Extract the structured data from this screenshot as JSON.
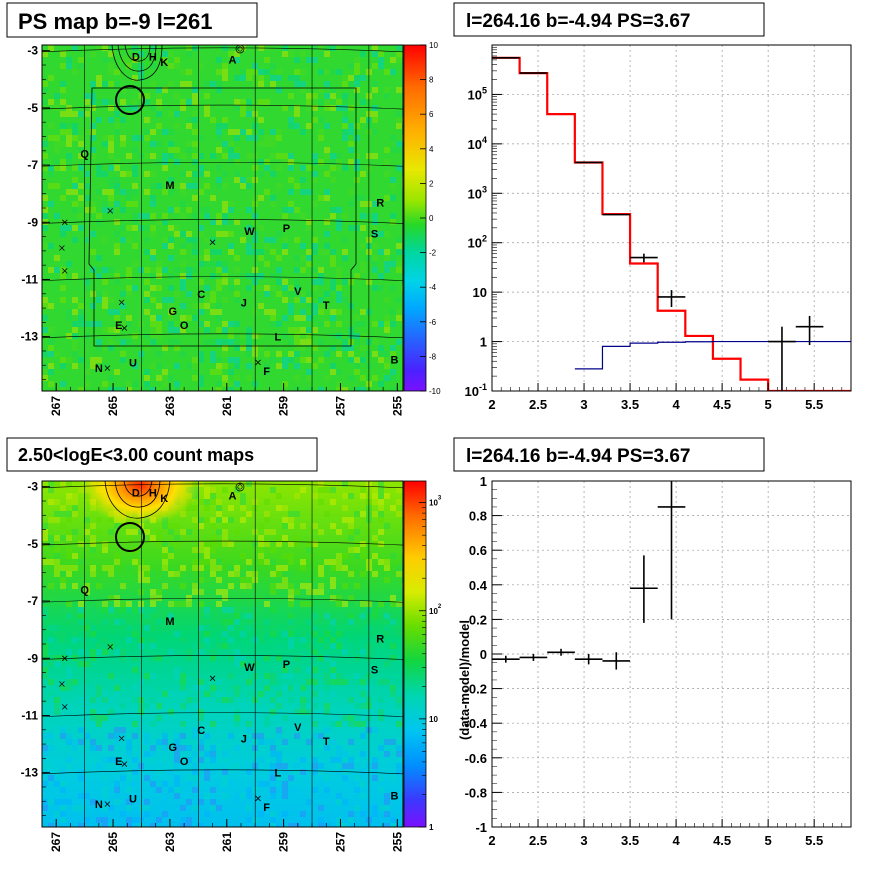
{
  "panels": {
    "tl": {
      "title": "PS map b=-9 l=261"
    },
    "tr": {
      "title": "l=264.16 b=-4.94 PS=3.67"
    },
    "bl": {
      "title": "2.50<logE<3.00 count maps"
    },
    "br": {
      "title": "l=264.16 b=-4.94 PS=3.67"
    }
  },
  "chart_data": [
    {
      "type": "heatmap",
      "title": "PS map b=-9 l=261",
      "x_ticks": [
        "267",
        "265",
        "263",
        "261",
        "259",
        "257",
        "255"
      ],
      "y_ticks": [
        "-3",
        "-5",
        "-7",
        "-9",
        "-11",
        "-13"
      ],
      "colorbar_ticks": [
        "10",
        "8",
        "6",
        "4",
        "2",
        "0",
        "-2",
        "-4",
        "-6",
        "-8",
        "-10"
      ],
      "source_labels": [
        {
          "t": "D",
          "l": 264.2,
          "b": -3.2
        },
        {
          "t": "H",
          "l": 263.6,
          "b": -3.2
        },
        {
          "t": "K",
          "l": 263.2,
          "b": -3.4
        },
        {
          "t": "A",
          "l": 260.8,
          "b": -3.3
        },
        {
          "t": "Q",
          "l": 266.0,
          "b": -6.6
        },
        {
          "t": "M",
          "l": 263.0,
          "b": -7.7
        },
        {
          "t": "R",
          "l": 255.6,
          "b": -8.3
        },
        {
          "t": "W",
          "l": 260.2,
          "b": -9.3
        },
        {
          "t": "P",
          "l": 258.9,
          "b": -9.2
        },
        {
          "t": "S",
          "l": 255.8,
          "b": -9.4
        },
        {
          "t": "C",
          "l": 261.9,
          "b": -11.5
        },
        {
          "t": "J",
          "l": 260.4,
          "b": -11.8
        },
        {
          "t": "V",
          "l": 258.5,
          "b": -11.4
        },
        {
          "t": "T",
          "l": 257.5,
          "b": -11.9
        },
        {
          "t": "G",
          "l": 262.9,
          "b": -12.1
        },
        {
          "t": "O",
          "l": 262.5,
          "b": -12.6
        },
        {
          "t": "E",
          "l": 264.8,
          "b": -12.6
        },
        {
          "t": "L",
          "l": 259.2,
          "b": -13.0
        },
        {
          "t": "U",
          "l": 264.3,
          "b": -13.9
        },
        {
          "t": "N",
          "l": 265.5,
          "b": -14.1
        },
        {
          "t": "F",
          "l": 259.6,
          "b": -14.2
        },
        {
          "t": "B",
          "l": 255.1,
          "b": -13.8
        }
      ]
    },
    {
      "type": "line",
      "title": "l=264.16 b=-4.94 PS=3.67",
      "x_ticks": [
        "2",
        "2.5",
        "3",
        "3.5",
        "4",
        "4.5",
        "5",
        "5.5"
      ],
      "y_ticks": [
        "10^-1",
        "1",
        "10",
        "10^2",
        "10^3",
        "10^4",
        "10^5"
      ],
      "xlim": [
        2,
        5.9
      ],
      "ylim": [
        0.1,
        1000000
      ],
      "yscale": "log",
      "grid": true,
      "series": [
        {
          "color": "#ff0000",
          "edges": [
            2,
            2.3,
            2.6,
            2.9,
            3.2,
            3.5,
            3.8,
            4.1,
            4.4,
            4.7,
            5.0,
            5.3,
            5.6,
            5.9
          ],
          "values": [
            550000,
            270000,
            40000,
            4200,
            380,
            38,
            4.2,
            1.3,
            0.45,
            0.17,
            0.1,
            0.1,
            0.1
          ]
        },
        {
          "color": "#00008b",
          "edges": [
            2.9,
            3.2,
            3.5,
            3.8,
            4.1,
            4.4,
            4.7,
            5.0,
            5.3,
            5.6,
            5.9
          ],
          "values": [
            0.28,
            0.8,
            0.93,
            0.97,
            0.99,
            1.0,
            1.0,
            1.0,
            1.0,
            1.0
          ]
        },
        {
          "color": "#000000",
          "points": [
            {
              "x": 2.15,
              "y": 550000,
              "xlo": 2.0,
              "xhi": 2.3,
              "ylo": 550000,
              "yhi": 550000
            },
            {
              "x": 2.45,
              "y": 270000,
              "xlo": 2.3,
              "xhi": 2.6,
              "ylo": 270000,
              "yhi": 270000
            },
            {
              "x": 3.05,
              "y": 4200,
              "xlo": 2.9,
              "xhi": 3.2,
              "ylo": 4200,
              "yhi": 4200
            },
            {
              "x": 3.35,
              "y": 370,
              "xlo": 3.2,
              "xhi": 3.5,
              "ylo": 370,
              "yhi": 370
            },
            {
              "x": 3.65,
              "y": 50,
              "xlo": 3.5,
              "xhi": 3.8,
              "ylo": 40,
              "yhi": 60
            },
            {
              "x": 3.95,
              "y": 8,
              "xlo": 3.8,
              "xhi": 4.1,
              "ylo": 5,
              "yhi": 11
            },
            {
              "x": 5.15,
              "y": 1,
              "xlo": 5.0,
              "xhi": 5.3,
              "ylo": 0.1,
              "yhi": 2
            },
            {
              "x": 5.45,
              "y": 2,
              "xlo": 5.3,
              "xhi": 5.6,
              "ylo": 0.85,
              "yhi": 3.3
            }
          ]
        }
      ]
    },
    {
      "type": "heatmap",
      "title": "2.50<logE<3.00 count maps",
      "x_ticks": [
        "267",
        "265",
        "263",
        "261",
        "259",
        "257",
        "255"
      ],
      "y_ticks": [
        "-3",
        "-5",
        "-7",
        "-9",
        "-11",
        "-13"
      ],
      "colorbar_ticks": [
        "10^3",
        "10^2",
        "10",
        "1"
      ],
      "colorbar_scale": "log"
    },
    {
      "type": "scatter",
      "title": "l=264.16 b=-4.94 PS=3.67",
      "ylabel": "(data-model)/model",
      "x_ticks": [
        "2",
        "2.5",
        "3",
        "3.5",
        "4",
        "4.5",
        "5",
        "5.5"
      ],
      "y_ticks": [
        "1",
        "0.8",
        "0.6",
        "0.4",
        "0.2",
        "0",
        "-0.2",
        "-0.4",
        "-0.6",
        "-0.8",
        "-1"
      ],
      "xlim": [
        2,
        5.9
      ],
      "ylim": [
        -1,
        1
      ],
      "grid": true,
      "points": [
        {
          "x": 2.15,
          "y": -0.03,
          "xlo": 2.0,
          "xhi": 2.3,
          "ylo": -0.05,
          "yhi": -0.01
        },
        {
          "x": 2.45,
          "y": -0.02,
          "xlo": 2.3,
          "xhi": 2.6,
          "ylo": -0.04,
          "yhi": 0.0
        },
        {
          "x": 2.75,
          "y": 0.01,
          "xlo": 2.6,
          "xhi": 2.9,
          "ylo": -0.01,
          "yhi": 0.03
        },
        {
          "x": 3.05,
          "y": -0.03,
          "xlo": 2.9,
          "xhi": 3.2,
          "ylo": -0.06,
          "yhi": 0.0
        },
        {
          "x": 3.35,
          "y": -0.04,
          "xlo": 3.2,
          "xhi": 3.5,
          "ylo": -0.09,
          "yhi": 0.01
        },
        {
          "x": 3.65,
          "y": 0.38,
          "xlo": 3.5,
          "xhi": 3.8,
          "ylo": 0.18,
          "yhi": 0.57
        },
        {
          "x": 3.95,
          "y": 0.85,
          "xlo": 3.8,
          "xhi": 4.1,
          "ylo": 0.2,
          "yhi": 1.0
        }
      ]
    }
  ]
}
